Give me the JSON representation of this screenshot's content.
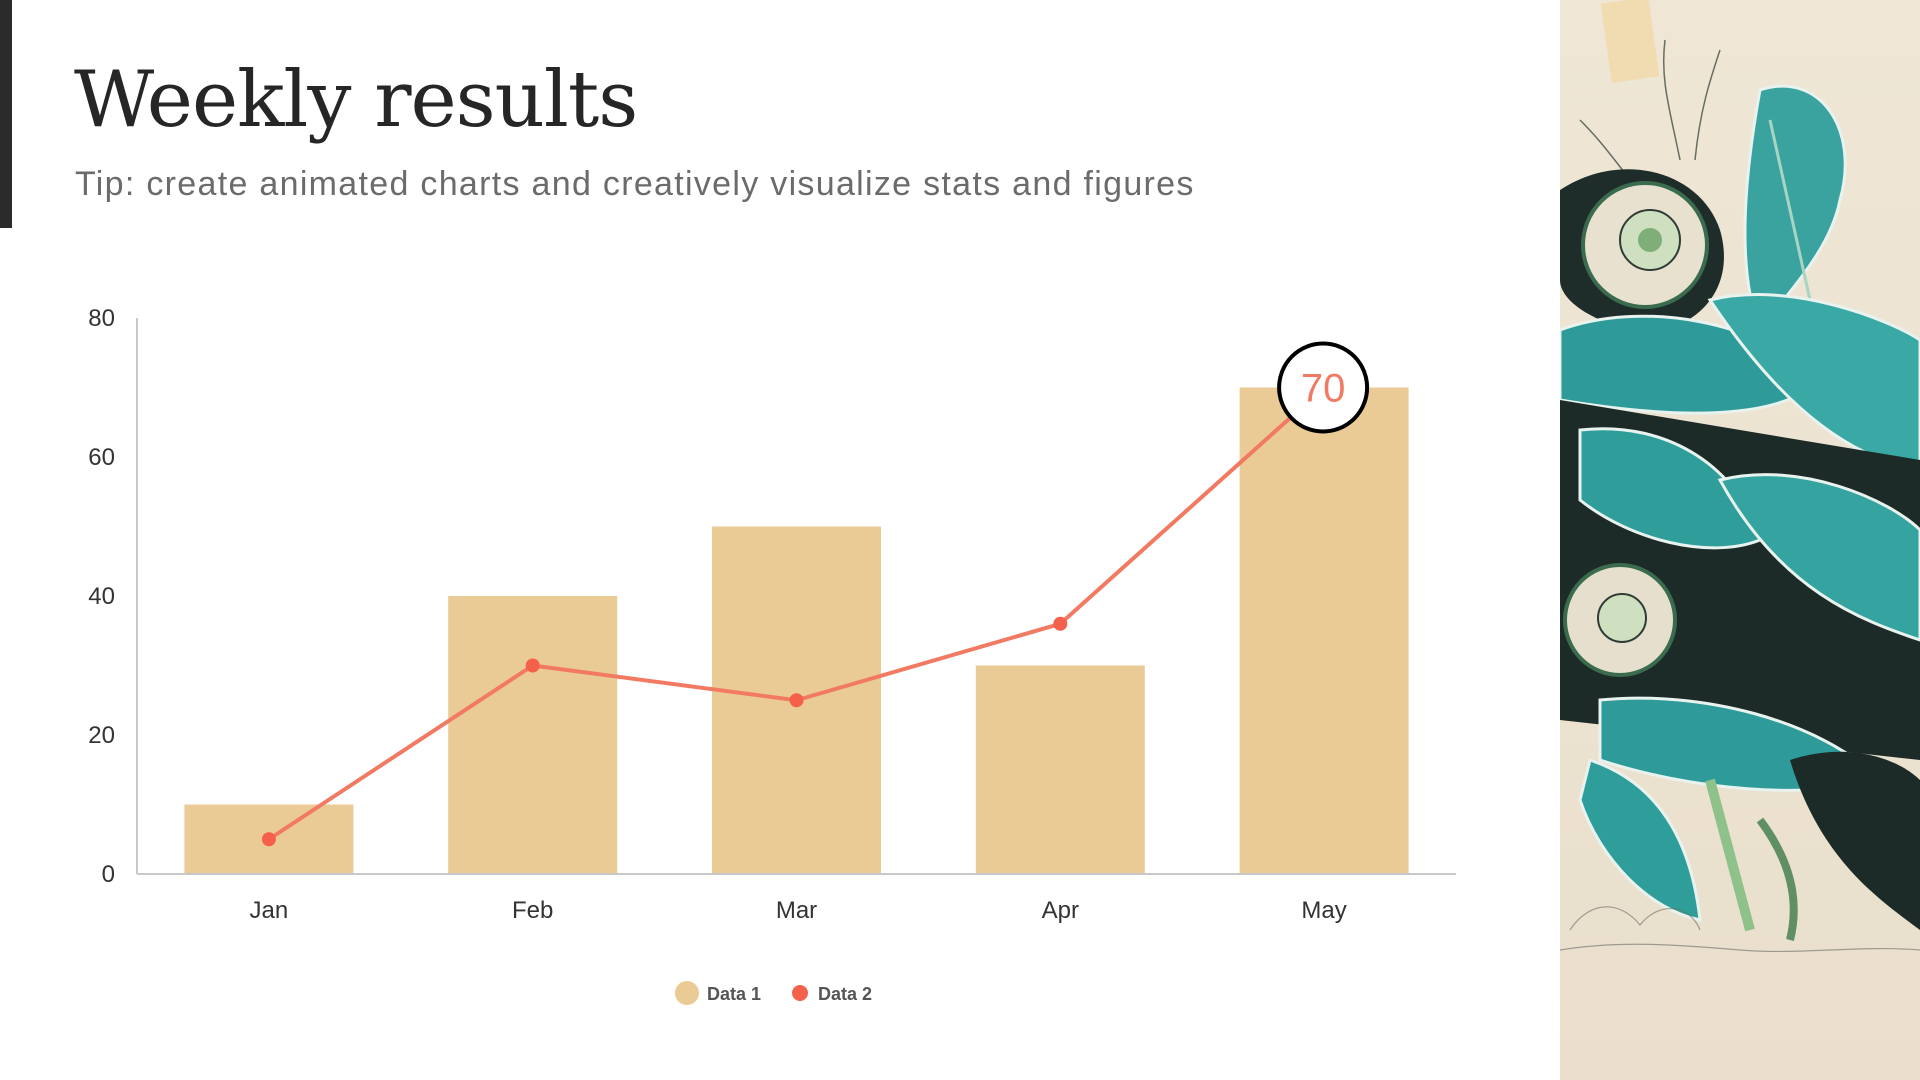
{
  "slide": {
    "title": "Weekly results",
    "subtitle": "Tip: create animated charts and creatively visualize stats and figures"
  },
  "colors": {
    "accent_bar": "#2b2b2b",
    "bar": "#eacb95",
    "line": "#f27a62",
    "point": "#f5604a",
    "axis": "#c8c8c8",
    "callout_border": "#000000",
    "callout_text": "#f27a62"
  },
  "chart_data": {
    "type": "bar",
    "title": "",
    "xlabel": "",
    "ylabel": "",
    "categories": [
      "Jan",
      "Feb",
      "Mar",
      "Apr",
      "May"
    ],
    "series": [
      {
        "name": "Data 1",
        "type": "bar",
        "values": [
          10,
          40,
          50,
          30,
          70
        ]
      },
      {
        "name": "Data 2",
        "type": "line",
        "values": [
          5,
          30,
          25,
          36,
          70
        ]
      }
    ],
    "ylim": [
      0,
      80
    ],
    "yticks": [
      0,
      20,
      40,
      60,
      80
    ],
    "grid": false,
    "legend_position": "bottom",
    "annotations": [
      {
        "category": "May",
        "series": "Data 2",
        "label": "70",
        "style": "circle-callout"
      }
    ]
  },
  "legend": {
    "items": [
      {
        "label": "Data 1",
        "icon": "circle-swatch"
      },
      {
        "label": "Data 2",
        "icon": "dot-swatch"
      }
    ]
  },
  "side_image": {
    "icon": "botanical-illustration-image"
  }
}
